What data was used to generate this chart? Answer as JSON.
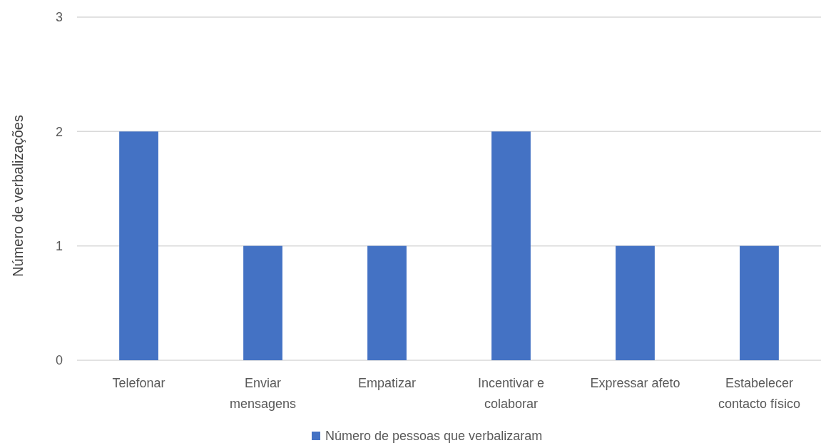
{
  "chart_data": {
    "type": "bar",
    "ylabel": "Número de verbalizações",
    "categories": [
      "Telefonar",
      "Enviar mensagens",
      "Empatizar",
      "Incentivar e colaborar",
      "Expressar afeto",
      "Estabelecer contacto físico"
    ],
    "series": [
      {
        "name": "Número de pessoas que verbalizaram",
        "color": "#4472c4",
        "values": [
          2,
          1,
          1,
          2,
          1,
          1
        ]
      }
    ],
    "ylim": [
      0,
      3
    ],
    "yticks": [
      0,
      1,
      2,
      3
    ],
    "grid": "y",
    "legend": "bottom"
  }
}
